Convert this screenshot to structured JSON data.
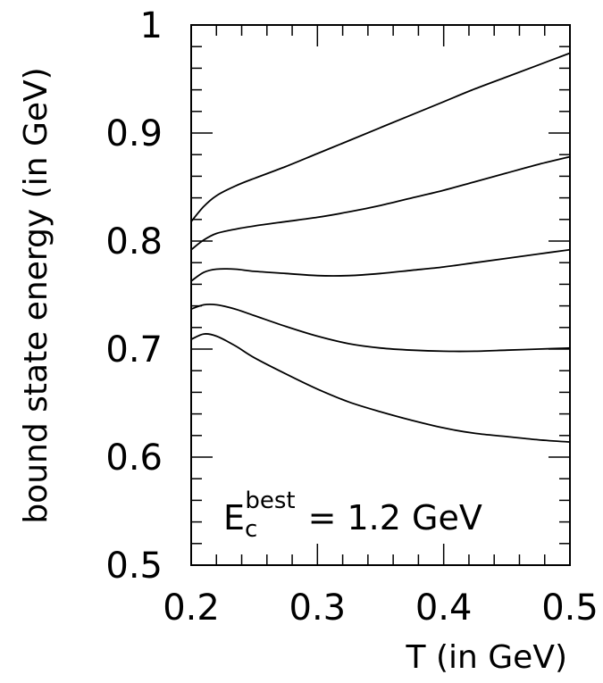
{
  "chart_data": {
    "type": "line",
    "title": "",
    "xlabel": "T (in GeV)",
    "ylabel": "bound state energy (in GeV)",
    "xlim": [
      0.2,
      0.5
    ],
    "ylim": [
      0.5,
      1.0
    ],
    "x_ticks": [
      0.2,
      0.3,
      0.4,
      0.5
    ],
    "x_tick_labels": [
      "0.2",
      "0.3",
      "0.4",
      "0.5"
    ],
    "y_ticks": [
      0.5,
      0.6,
      0.7,
      0.8,
      0.9,
      1.0
    ],
    "y_tick_labels": [
      "0.5",
      "0.6",
      "0.7",
      "0.8",
      "0.9",
      "1"
    ],
    "grid": false,
    "legend": "none",
    "annotation": {
      "symbol": "E",
      "subscript": "c",
      "superscript": "best",
      "text": "= 1.2 GeV"
    },
    "series": [
      {
        "x": [
          0.2,
          0.21,
          0.22,
          0.235,
          0.25,
          0.275,
          0.3,
          0.325,
          0.35,
          0.375,
          0.4,
          0.425,
          0.45,
          0.475,
          0.5
        ],
        "values": [
          0.818,
          0.832,
          0.842,
          0.851,
          0.858,
          0.869,
          0.881,
          0.893,
          0.905,
          0.917,
          0.929,
          0.941,
          0.952,
          0.963,
          0.974
        ]
      },
      {
        "x": [
          0.2,
          0.21,
          0.22,
          0.235,
          0.25,
          0.275,
          0.3,
          0.325,
          0.35,
          0.375,
          0.4,
          0.425,
          0.45,
          0.475,
          0.5
        ],
        "values": [
          0.792,
          0.801,
          0.807,
          0.811,
          0.814,
          0.818,
          0.822,
          0.827,
          0.833,
          0.84,
          0.847,
          0.855,
          0.863,
          0.871,
          0.878
        ]
      },
      {
        "x": [
          0.2,
          0.21,
          0.22,
          0.235,
          0.25,
          0.275,
          0.3,
          0.325,
          0.35,
          0.375,
          0.4,
          0.425,
          0.45,
          0.475,
          0.5
        ],
        "values": [
          0.763,
          0.771,
          0.774,
          0.774,
          0.772,
          0.77,
          0.768,
          0.768,
          0.77,
          0.773,
          0.776,
          0.78,
          0.784,
          0.788,
          0.792
        ]
      },
      {
        "x": [
          0.2,
          0.21,
          0.22,
          0.235,
          0.25,
          0.275,
          0.3,
          0.325,
          0.35,
          0.375,
          0.4,
          0.425,
          0.45,
          0.475,
          0.5
        ],
        "values": [
          0.737,
          0.741,
          0.741,
          0.737,
          0.731,
          0.721,
          0.712,
          0.705,
          0.701,
          0.699,
          0.698,
          0.698,
          0.699,
          0.7,
          0.701
        ]
      },
      {
        "x": [
          0.2,
          0.21,
          0.22,
          0.235,
          0.25,
          0.275,
          0.3,
          0.325,
          0.35,
          0.375,
          0.4,
          0.425,
          0.45,
          0.475,
          0.5
        ],
        "values": [
          0.709,
          0.714,
          0.712,
          0.703,
          0.692,
          0.677,
          0.663,
          0.651,
          0.642,
          0.634,
          0.627,
          0.622,
          0.619,
          0.616,
          0.614
        ]
      }
    ]
  }
}
